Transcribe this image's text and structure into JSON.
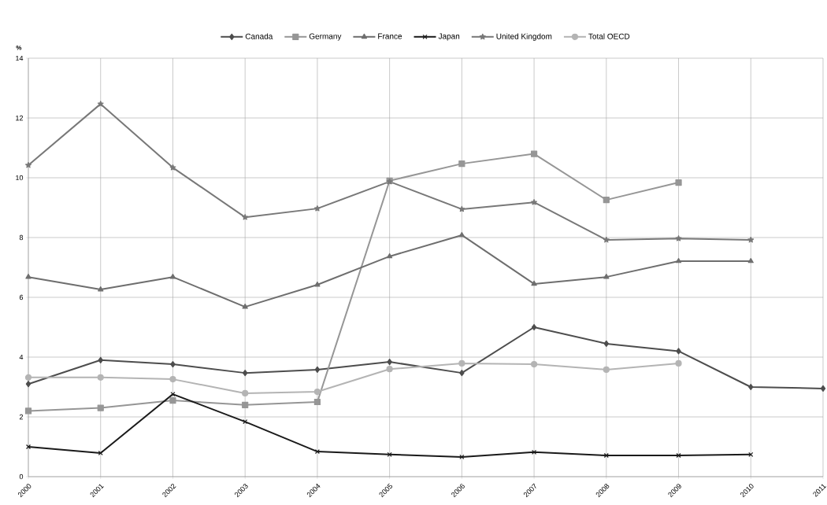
{
  "chart_data": {
    "type": "line",
    "ylabel": "%",
    "x": [
      2000,
      2001,
      2002,
      2003,
      2004,
      2005,
      2006,
      2007,
      2008,
      2009,
      2010,
      2011
    ],
    "series": [
      {
        "name": "Canada",
        "color": "#4d4d4d",
        "marker": "diamond",
        "values": [
          3.1,
          3.9,
          3.76,
          3.47,
          3.58,
          3.84,
          3.47,
          5.0,
          4.45,
          4.2,
          3.0,
          2.95
        ]
      },
      {
        "name": "Germany",
        "color": "#969696",
        "marker": "square",
        "values": [
          2.2,
          2.3,
          2.55,
          2.4,
          2.5,
          9.9,
          10.47,
          10.8,
          9.26,
          9.84,
          null,
          null
        ]
      },
      {
        "name": "France",
        "color": "#6e6e6e",
        "marker": "triangle",
        "values": [
          6.68,
          6.26,
          6.68,
          5.68,
          6.42,
          7.37,
          8.08,
          6.45,
          6.68,
          7.21,
          7.21,
          null
        ]
      },
      {
        "name": "Japan",
        "color": "#1a1a1a",
        "marker": "cross",
        "values": [
          1.0,
          0.79,
          2.76,
          1.84,
          0.84,
          0.74,
          0.66,
          0.82,
          0.71,
          0.71,
          0.74,
          null
        ]
      },
      {
        "name": "United Kingdom",
        "color": "#787878",
        "marker": "star",
        "values": [
          10.42,
          12.47,
          10.34,
          8.68,
          8.97,
          9.87,
          8.95,
          9.18,
          7.92,
          7.97,
          7.92,
          null
        ]
      },
      {
        "name": "Total OECD",
        "color": "#b4b4b4",
        "marker": "circle",
        "values": [
          3.32,
          3.32,
          3.26,
          2.79,
          2.84,
          3.6,
          3.79,
          3.76,
          3.58,
          3.79,
          null,
          null
        ]
      }
    ],
    "xlim": [
      2000,
      2011
    ],
    "xticks": [
      2000,
      2001,
      2002,
      2003,
      2004,
      2005,
      2006,
      2007,
      2008,
      2009,
      2010,
      2011
    ],
    "ylim": [
      0,
      14
    ],
    "yticks": [
      0,
      2,
      4,
      6,
      8,
      10,
      12,
      14
    ],
    "grid": true,
    "legend": "top",
    "line_style": "solid"
  }
}
